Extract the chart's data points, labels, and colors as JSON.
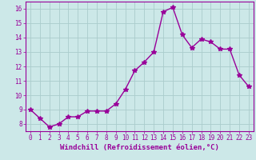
{
  "x": [
    0,
    1,
    2,
    3,
    4,
    5,
    6,
    7,
    8,
    9,
    10,
    11,
    12,
    13,
    14,
    15,
    16,
    17,
    18,
    19,
    20,
    21,
    22,
    23
  ],
  "y": [
    9.0,
    8.4,
    7.8,
    8.0,
    8.5,
    8.5,
    8.9,
    8.9,
    8.9,
    9.4,
    10.4,
    11.7,
    12.3,
    13.0,
    15.8,
    16.1,
    14.2,
    13.3,
    13.9,
    13.7,
    13.2,
    13.2,
    11.4,
    10.6
  ],
  "line_color": "#990099",
  "marker": "*",
  "marker_size": 4,
  "bg_color": "#cce8e8",
  "grid_color": "#aacccc",
  "xlabel": "Windchill (Refroidissement éolien,°C)",
  "xlabel_color": "#990099",
  "tick_color": "#990099",
  "ylim": [
    7.5,
    16.5
  ],
  "xlim": [
    -0.5,
    23.5
  ],
  "yticks": [
    8,
    9,
    10,
    11,
    12,
    13,
    14,
    15,
    16
  ],
  "xticks": [
    0,
    1,
    2,
    3,
    4,
    5,
    6,
    7,
    8,
    9,
    10,
    11,
    12,
    13,
    14,
    15,
    16,
    17,
    18,
    19,
    20,
    21,
    22,
    23
  ],
  "font_family": "monospace",
  "tick_fontsize": 5.5,
  "xlabel_fontsize": 6.5,
  "linewidth": 1.0
}
